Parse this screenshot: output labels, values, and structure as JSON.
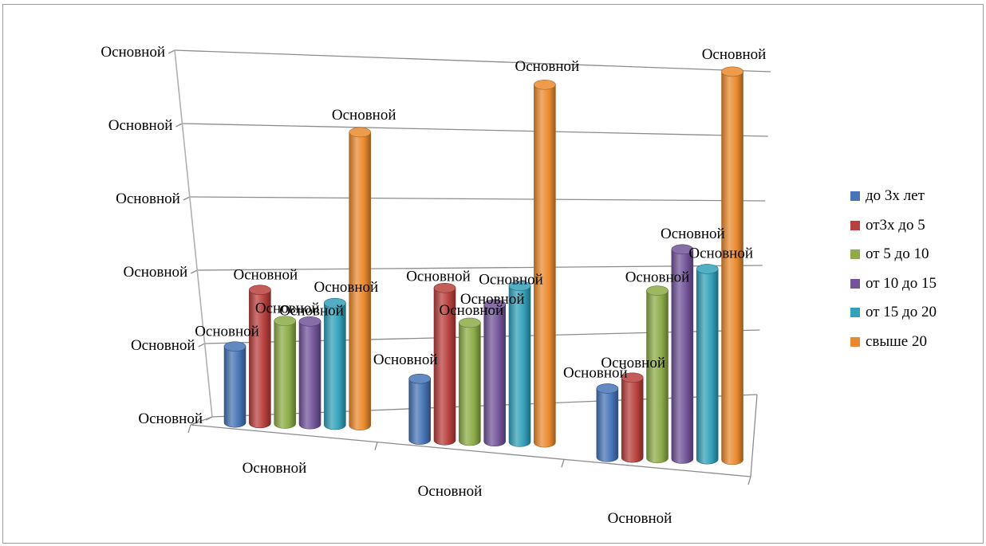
{
  "chart_data": {
    "type": "bar",
    "style": "3d-cylinder",
    "categories": [
      "Основной",
      "Основной",
      "Основной"
    ],
    "y_tick_labels": [
      "Основной",
      "Основной",
      "Основной",
      "Основной",
      "Основной",
      "Основной"
    ],
    "y_ticks": [
      0,
      1,
      2,
      3,
      4,
      5
    ],
    "ylim": [
      0,
      5
    ],
    "series": [
      {
        "name": "до 3х лет",
        "color": "#4674b6",
        "values": [
          1.0,
          0.8,
          0.9
        ],
        "data_labels": [
          "Основной",
          "Основной",
          "Основной"
        ]
      },
      {
        "name": "от3х до 5",
        "color": "#b8403d",
        "values": [
          1.75,
          2.0,
          1.05
        ],
        "data_labels": [
          "Основной",
          "Основной",
          "Основной"
        ]
      },
      {
        "name": "от 5 до 10",
        "color": "#8cac46",
        "values": [
          1.35,
          1.55,
          2.2
        ],
        "data_labels": [
          "Основной",
          "Основной",
          "Основной"
        ]
      },
      {
        "name": "от 10 до 15",
        "color": "#73549a",
        "values": [
          1.35,
          1.8,
          2.75
        ],
        "data_labels": [
          "Основной",
          "Основной",
          "Основной"
        ]
      },
      {
        "name": "от 15 до 20",
        "color": "#33a0b9",
        "values": [
          1.6,
          2.05,
          2.5
        ],
        "data_labels": [
          "Основной",
          "Основной",
          "Основной"
        ]
      },
      {
        "name": "свыше 20",
        "color": "#ea8a2f",
        "values": [
          3.85,
          4.7,
          5.1
        ],
        "data_labels": [
          "Основной",
          "Основной",
          "Основной"
        ]
      }
    ],
    "grid": true,
    "legend_position": "right"
  }
}
